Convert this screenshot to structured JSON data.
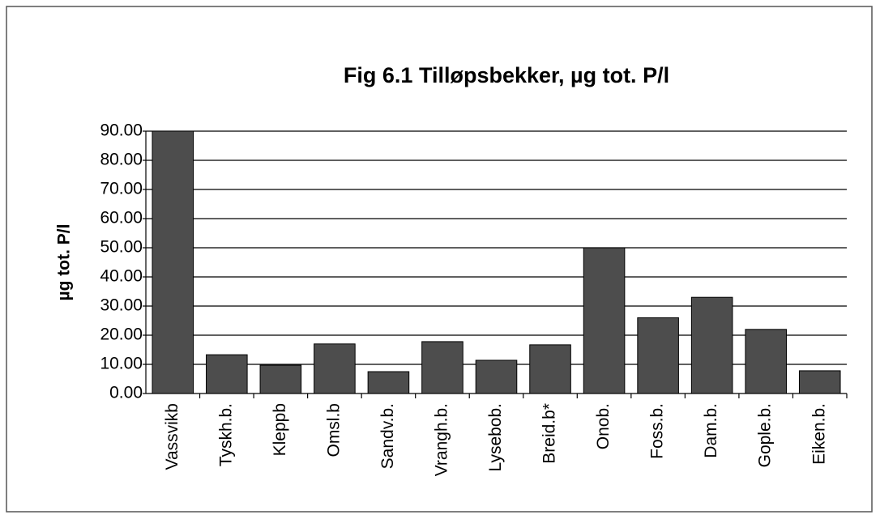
{
  "chart_data": {
    "type": "bar",
    "title": "Fig 6.1 Tilløpsbekker, µg tot. P/l",
    "y_label": "µg tot. P/l",
    "categories": [
      "Vassvikb",
      "Tyskh.b.",
      "Kleppb",
      "Omsl.b",
      "Sandv.b.",
      "Vrangh.b.",
      "Lysebob.",
      "Breid.b*",
      "Onob.",
      "Foss.b.",
      "Dam.b.",
      "Gople.b.",
      "Eiken.b."
    ],
    "values": [
      90,
      13.3,
      9.7,
      17,
      7.5,
      17.8,
      11.4,
      16.7,
      50,
      26,
      33,
      22,
      7.8
    ],
    "color": "#4d4d4d",
    "ylim": [
      0,
      90
    ],
    "yticks": [
      {
        "value": 0,
        "label": "0.00"
      },
      {
        "value": 10,
        "label": "10.00"
      },
      {
        "value": 20,
        "label": "20.00"
      },
      {
        "value": 30,
        "label": "30.00"
      },
      {
        "value": 40,
        "label": "40.00"
      },
      {
        "value": 50,
        "label": "50.00"
      },
      {
        "value": 60,
        "label": "60.00"
      },
      {
        "value": 70,
        "label": "70.00"
      },
      {
        "value": 80,
        "label": "80.00"
      },
      {
        "value": 90,
        "label": "90.00"
      }
    ],
    "grid": true
  }
}
